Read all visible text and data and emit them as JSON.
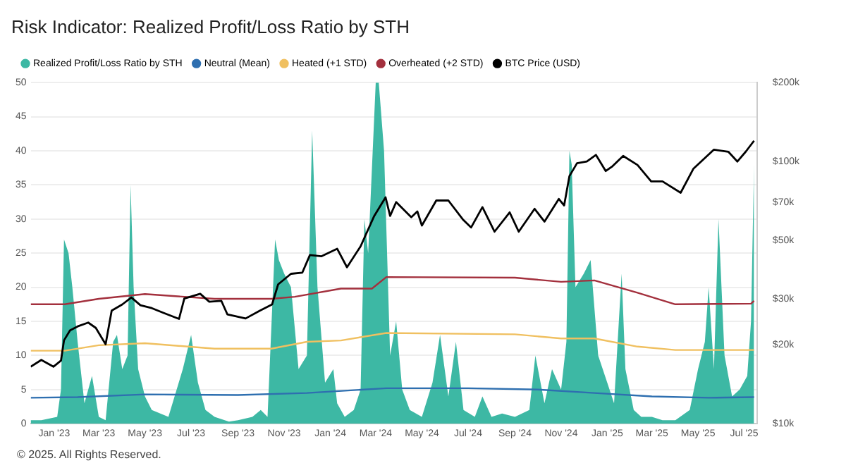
{
  "chart_data": {
    "type": "line",
    "title": "Risk Indicator: Realized Profit/Loss Ratio by STH",
    "series": [
      {
        "name": "Realized Profit/Loss Ratio by STH",
        "type": "area",
        "color": "#3db8a4",
        "x": [
          "2022-12-01",
          "2022-12-15",
          "2023-01-05",
          "2023-01-10",
          "2023-01-14",
          "2023-01-20",
          "2023-01-25",
          "2023-02-01",
          "2023-02-10",
          "2023-02-20",
          "2023-03-01",
          "2023-03-10",
          "2023-03-20",
          "2023-03-25",
          "2023-04-01",
          "2023-04-08",
          "2023-04-12",
          "2023-04-16",
          "2023-04-22",
          "2023-05-01",
          "2023-05-10",
          "2023-06-01",
          "2023-06-20",
          "2023-07-01",
          "2023-07-10",
          "2023-07-20",
          "2023-08-01",
          "2023-08-20",
          "2023-09-01",
          "2023-09-20",
          "2023-10-01",
          "2023-10-10",
          "2023-10-20",
          "2023-10-25",
          "2023-11-01",
          "2023-11-10",
          "2023-11-20",
          "2023-12-01",
          "2023-12-08",
          "2023-12-15",
          "2023-12-25",
          "2024-01-05",
          "2024-01-10",
          "2024-01-20",
          "2024-02-01",
          "2024-02-10",
          "2024-02-15",
          "2024-02-20",
          "2024-03-01",
          "2024-03-05",
          "2024-03-12",
          "2024-03-20",
          "2024-03-28",
          "2024-04-05",
          "2024-04-15",
          "2024-05-01",
          "2024-05-15",
          "2024-05-25",
          "2024-06-05",
          "2024-06-15",
          "2024-06-25",
          "2024-07-10",
          "2024-07-20",
          "2024-08-01",
          "2024-08-15",
          "2024-09-01",
          "2024-09-20",
          "2024-09-28",
          "2024-10-10",
          "2024-10-20",
          "2024-11-01",
          "2024-11-08",
          "2024-11-12",
          "2024-11-15",
          "2024-11-20",
          "2024-12-01",
          "2024-12-10",
          "2024-12-20",
          "2025-01-01",
          "2025-01-10",
          "2025-01-20",
          "2025-01-25",
          "2025-02-05",
          "2025-02-15",
          "2025-03-01",
          "2025-03-15",
          "2025-04-01",
          "2025-04-20",
          "2025-05-01",
          "2025-05-10",
          "2025-05-15",
          "2025-05-22",
          "2025-05-28",
          "2025-06-05",
          "2025-06-15",
          "2025-06-25",
          "2025-07-05",
          "2025-07-10",
          "2025-07-14"
        ],
        "values": [
          0.5,
          0.5,
          1,
          5,
          27,
          25,
          20,
          12,
          3,
          7,
          1,
          0.5,
          12,
          13,
          8,
          10,
          35,
          20,
          8,
          4,
          2,
          1,
          8,
          13,
          6,
          2,
          1,
          0.3,
          0.5,
          1,
          2,
          1,
          27,
          24,
          22,
          20,
          8,
          10,
          43,
          20,
          6,
          8,
          3,
          1,
          2,
          5,
          30,
          25,
          50,
          50,
          40,
          10,
          15,
          5,
          2,
          1,
          6,
          13,
          4,
          12,
          2,
          1,
          4,
          1,
          1.5,
          1,
          2,
          10,
          3,
          8,
          5,
          12,
          40,
          38,
          20,
          22,
          24,
          10,
          6,
          3,
          22,
          8,
          2,
          1,
          1,
          0.5,
          0.5,
          2,
          8,
          12,
          20,
          8,
          30,
          10,
          4,
          5,
          7,
          15,
          38
        ]
      },
      {
        "name": "Neutral (Mean)",
        "color": "#2e6fb0",
        "x": [
          "2022-12-01",
          "2023-02-01",
          "2023-05-01",
          "2023-09-01",
          "2023-12-01",
          "2024-03-15",
          "2024-07-01",
          "2024-10-01",
          "2024-12-15",
          "2025-03-01",
          "2025-05-15",
          "2025-07-14"
        ],
        "values": [
          3.8,
          3.9,
          4.3,
          4.2,
          4.5,
          5.2,
          5.2,
          5,
          4.5,
          4,
          3.8,
          3.9
        ]
      },
      {
        "name": "Heated (+1 STD)",
        "color": "#f0c060",
        "x": [
          "2022-12-01",
          "2023-01-15",
          "2023-03-01",
          "2023-05-01",
          "2023-08-01",
          "2023-10-15",
          "2023-12-01",
          "2024-01-15",
          "2024-03-15",
          "2024-09-01",
          "2024-11-01",
          "2024-12-15",
          "2025-02-10",
          "2025-04-01",
          "2025-07-14"
        ],
        "values": [
          10.7,
          10.7,
          11.5,
          11.8,
          11,
          11,
          12,
          12.2,
          13.3,
          13.1,
          12.5,
          12.5,
          11.3,
          10.8,
          10.8
        ]
      },
      {
        "name": "Overheated (+2 STD)",
        "color": "#a3303d",
        "x": [
          "2022-12-01",
          "2023-01-15",
          "2023-03-01",
          "2023-05-01",
          "2023-08-01",
          "2023-10-15",
          "2023-11-15",
          "2024-01-15",
          "2024-02-25",
          "2024-03-15",
          "2024-09-01",
          "2024-11-01",
          "2024-12-15",
          "2025-02-10",
          "2025-04-01",
          "2025-07-10",
          "2025-07-14"
        ],
        "values": [
          17.5,
          17.5,
          18.3,
          19,
          18.3,
          18.3,
          18.6,
          19.8,
          19.8,
          21.5,
          21.4,
          20.8,
          21,
          19.2,
          17.5,
          17.6,
          18
        ]
      },
      {
        "name": "BTC Price (USD)",
        "axis": "y2",
        "color": "#000000",
        "x": [
          "2022-12-01",
          "2022-12-15",
          "2022-12-31",
          "2023-01-10",
          "2023-01-14",
          "2023-01-22",
          "2023-02-01",
          "2023-02-15",
          "2023-02-25",
          "2023-03-10",
          "2023-03-18",
          "2023-04-01",
          "2023-04-13",
          "2023-04-25",
          "2023-05-10",
          "2023-05-25",
          "2023-06-15",
          "2023-06-22",
          "2023-07-13",
          "2023-07-25",
          "2023-08-10",
          "2023-08-18",
          "2023-09-11",
          "2023-09-30",
          "2023-10-16",
          "2023-10-24",
          "2023-11-10",
          "2023-11-25",
          "2023-12-05",
          "2023-12-20",
          "2024-01-10",
          "2024-01-23",
          "2024-02-10",
          "2024-02-28",
          "2024-03-14",
          "2024-03-20",
          "2024-03-28",
          "2024-04-17",
          "2024-04-25",
          "2024-05-01",
          "2024-05-20",
          "2024-06-05",
          "2024-06-24",
          "2024-07-05",
          "2024-07-20",
          "2024-08-05",
          "2024-08-25",
          "2024-09-06",
          "2024-09-27",
          "2024-10-10",
          "2024-10-29",
          "2024-11-05",
          "2024-11-12",
          "2024-11-22",
          "2024-12-05",
          "2024-12-17",
          "2024-12-30",
          "2025-01-08",
          "2025-01-22",
          "2025-02-10",
          "2025-02-28",
          "2025-03-15",
          "2025-04-08",
          "2025-04-25",
          "2025-05-22",
          "2025-06-10",
          "2025-06-22",
          "2025-07-03",
          "2025-07-14"
        ],
        "values": [
          16500,
          17500,
          16500,
          17400,
          20800,
          22700,
          23500,
          24300,
          23200,
          20100,
          27000,
          28500,
          30300,
          28300,
          27600,
          26500,
          25100,
          30000,
          31300,
          29200,
          29400,
          26100,
          25200,
          27000,
          28500,
          34000,
          37300,
          37700,
          44000,
          43500,
          46500,
          39500,
          47500,
          62000,
          73000,
          62000,
          70000,
          61300,
          64500,
          57000,
          71000,
          71000,
          60200,
          56000,
          67000,
          54000,
          64000,
          54000,
          66000,
          59000,
          72000,
          68000,
          88000,
          98500,
          100000,
          106000,
          92000,
          96000,
          105000,
          97000,
          84000,
          84000,
          76000,
          94000,
          111000,
          109000,
          100000,
          109000,
          120000
        ]
      }
    ],
    "xlim": [
      "2022-12-01",
      "2025-07-18"
    ],
    "xticks": [
      {
        "value": "2023-01-01",
        "label": "Jan '23"
      },
      {
        "value": "2023-03-01",
        "label": "Mar '23"
      },
      {
        "value": "2023-05-01",
        "label": "May '23"
      },
      {
        "value": "2023-07-01",
        "label": "Jul '23"
      },
      {
        "value": "2023-09-01",
        "label": "Sep '23"
      },
      {
        "value": "2023-11-01",
        "label": "Nov '23"
      },
      {
        "value": "2024-01-01",
        "label": "Jan '24"
      },
      {
        "value": "2024-03-01",
        "label": "Mar '24"
      },
      {
        "value": "2024-05-01",
        "label": "May '24"
      },
      {
        "value": "2024-07-01",
        "label": "Jul '24"
      },
      {
        "value": "2024-09-01",
        "label": "Sep '24"
      },
      {
        "value": "2024-11-01",
        "label": "Nov '24"
      },
      {
        "value": "2025-01-01",
        "label": "Jan '25"
      },
      {
        "value": "2025-03-01",
        "label": "Mar '25"
      },
      {
        "value": "2025-05-01",
        "label": "May '25"
      },
      {
        "value": "2025-07-01",
        "label": "Jul '25"
      }
    ],
    "ylim": [
      0,
      50
    ],
    "yticks": [
      0,
      5,
      10,
      15,
      20,
      25,
      30,
      35,
      40,
      45,
      50
    ],
    "y2lim": [
      10000,
      200000
    ],
    "y2ticks": [
      {
        "value": 10000,
        "label": "$10k"
      },
      {
        "value": 20000,
        "label": "$20k"
      },
      {
        "value": 30000,
        "label": "$30k"
      },
      {
        "value": 50000,
        "label": "$50k"
      },
      {
        "value": 70000,
        "label": "$70k"
      },
      {
        "value": 100000,
        "label": "$100k"
      },
      {
        "value": 200000,
        "label": "$200k"
      }
    ],
    "log": "y2",
    "grid": "y",
    "legend": "top left",
    "annotations": [
      "© 2025. All Rights Reserved."
    ]
  }
}
